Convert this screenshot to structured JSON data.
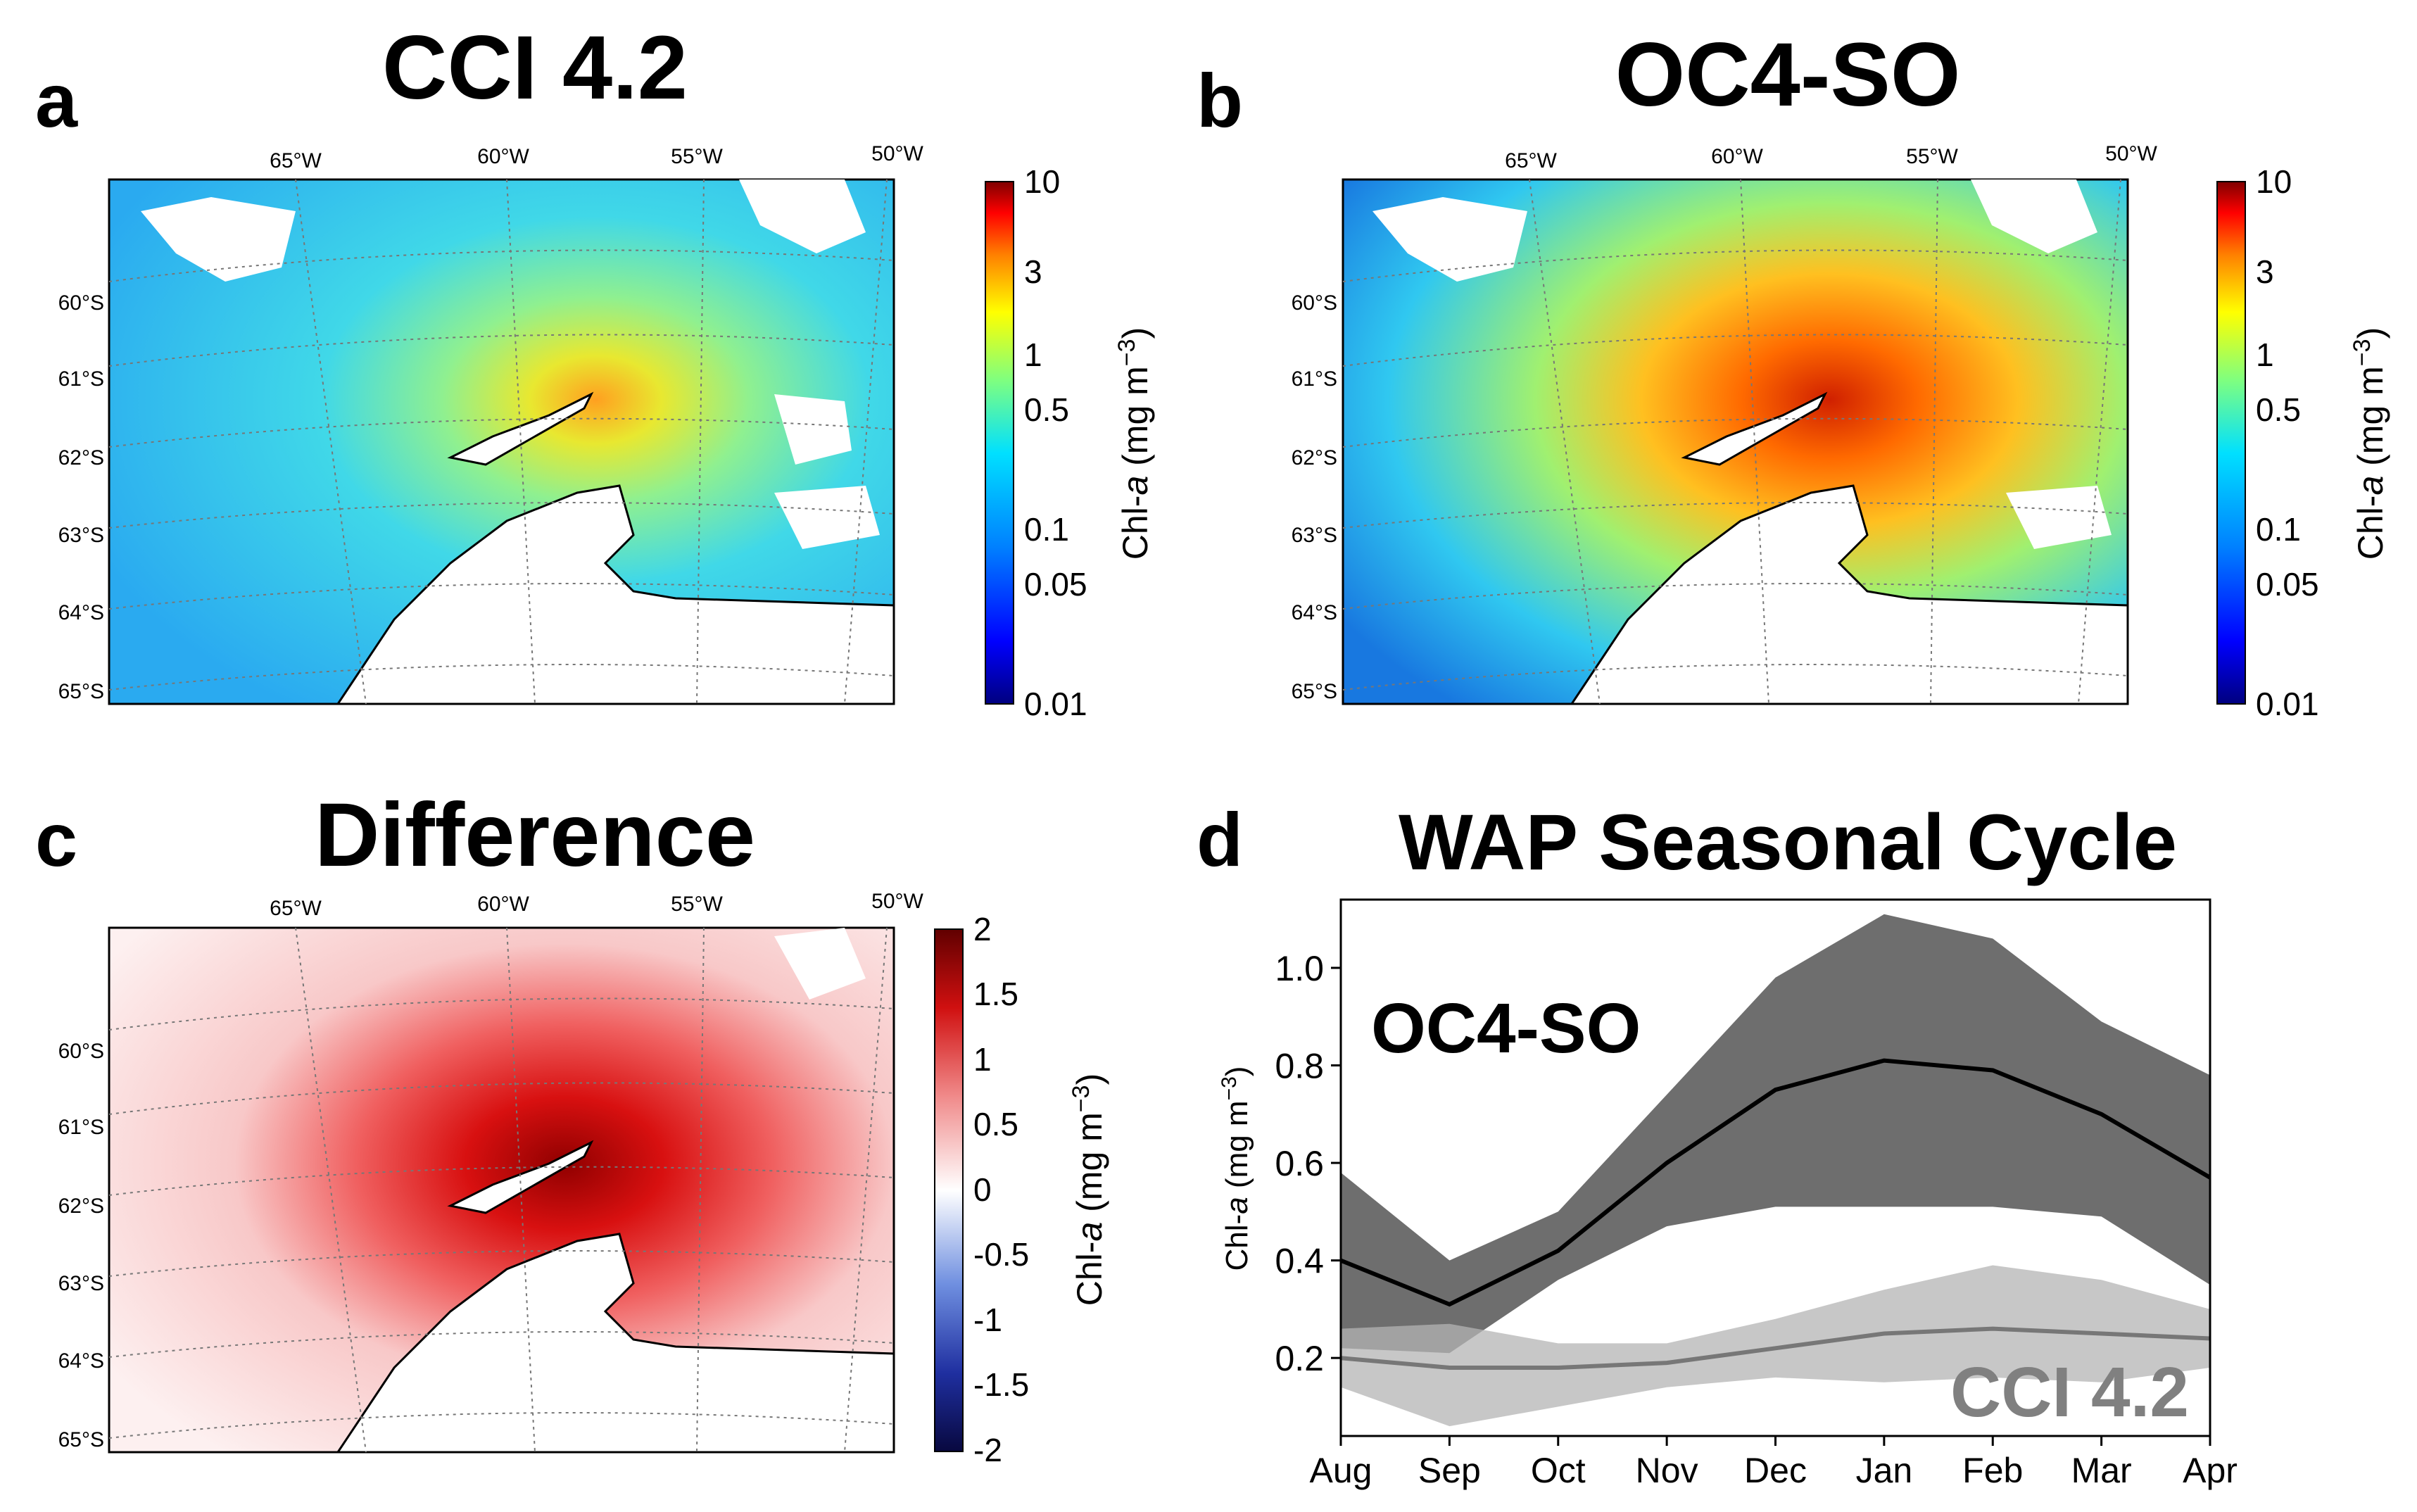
{
  "colors": {
    "oc4_line": "#000000",
    "oc4_band": "#555555",
    "cci_line": "#777777",
    "cci_band": "#b4b4b4",
    "cci_label": "#808080"
  },
  "panels": {
    "a": {
      "letter": "a",
      "title": "CCI 4.2"
    },
    "b": {
      "letter": "b",
      "title": "OC4-SO"
    },
    "c": {
      "letter": "c",
      "title": "Difference"
    },
    "d": {
      "letter": "d",
      "title": "WAP Seasonal Cycle"
    }
  },
  "map": {
    "lon_labels": [
      "65°W",
      "60°W",
      "55°W",
      "50°W"
    ],
    "lat_labels": [
      "60°S",
      "61°S",
      "62°S",
      "63°S",
      "64°S",
      "65°S"
    ]
  },
  "colorbar_chl": {
    "label_main": "Chl-",
    "label_italic": "a",
    "label_units": " (mg m",
    "label_exp": "−3",
    "label_close": ")",
    "ticks": [
      "10",
      "3",
      "1",
      "0.5",
      "0.1",
      "0.05",
      "0.01"
    ]
  },
  "colorbar_diff": {
    "label_main": "Chl-",
    "label_italic": "a",
    "label_units": " (mg m",
    "label_exp": "−3",
    "label_close": ")",
    "ticks": [
      "2",
      "1.5",
      "1",
      "0.5",
      "0",
      "-0.5",
      "-1",
      "-1.5",
      "-2"
    ]
  },
  "chart_data": {
    "type": "line",
    "title": "WAP Seasonal Cycle",
    "xlabel": "",
    "ylabel_main": "Chl-",
    "ylabel_italic": "a",
    "ylabel_units": " (mg m",
    "ylabel_exp": "−3",
    "ylabel_close": ")",
    "categories": [
      "Aug",
      "Sep",
      "Oct",
      "Nov",
      "Dec",
      "Jan",
      "Feb",
      "Mar",
      "Apr"
    ],
    "ylim": [
      0.04,
      1.14
    ],
    "yticks": [
      0.2,
      0.4,
      0.6,
      0.8,
      1.0
    ],
    "ytick_labels": [
      "0.2",
      "0.4",
      "0.6",
      "0.8",
      "1.0"
    ],
    "series": [
      {
        "name": "OC4-SO",
        "mean": [
          0.4,
          0.31,
          0.42,
          0.6,
          0.75,
          0.81,
          0.79,
          0.7,
          0.57
        ],
        "upper": [
          0.58,
          0.4,
          0.5,
          0.74,
          0.98,
          1.11,
          1.06,
          0.89,
          0.78
        ],
        "lower": [
          0.22,
          0.21,
          0.36,
          0.47,
          0.51,
          0.51,
          0.51,
          0.49,
          0.35
        ]
      },
      {
        "name": "CCI 4.2",
        "mean": [
          0.2,
          0.18,
          0.18,
          0.19,
          0.22,
          0.25,
          0.26,
          0.25,
          0.24
        ],
        "upper": [
          0.26,
          0.27,
          0.23,
          0.23,
          0.28,
          0.34,
          0.39,
          0.36,
          0.3
        ],
        "lower": [
          0.14,
          0.06,
          0.1,
          0.14,
          0.16,
          0.15,
          0.16,
          0.15,
          0.18
        ]
      }
    ],
    "annotations": [
      "OC4-SO",
      "CCI 4.2"
    ]
  }
}
